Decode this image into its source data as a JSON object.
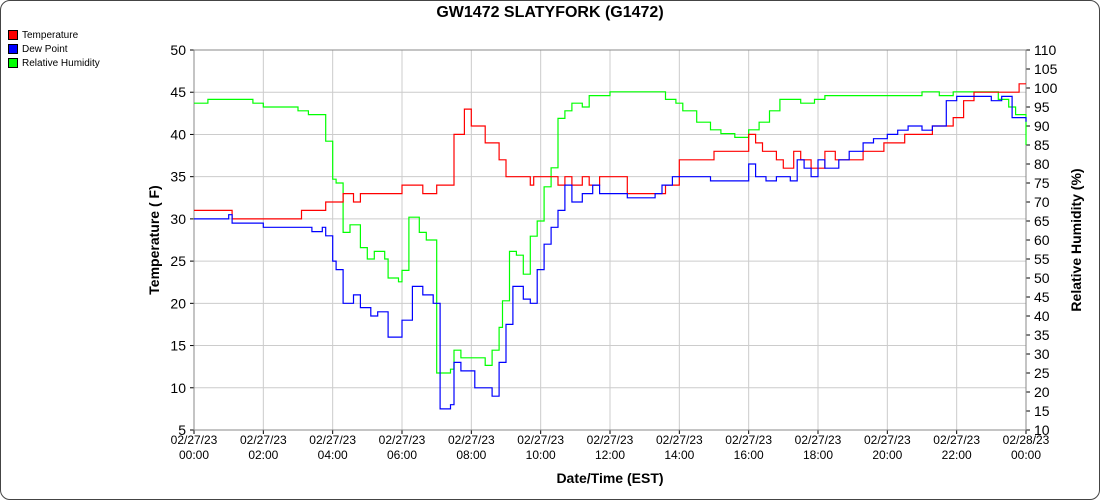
{
  "chart_data": {
    "type": "line",
    "title": "GW1472 SLATYFORK (G1472)",
    "xlabel": "Date/Time (EST)",
    "ylabel": "Temperature ( F)",
    "ylabel_right": "Relative Humidity (%)",
    "x_range": [
      0,
      24
    ],
    "ylim": [
      5,
      50
    ],
    "ylim_right": [
      10,
      110
    ],
    "y_ticks": [
      5,
      10,
      15,
      20,
      25,
      30,
      35,
      40,
      45,
      50
    ],
    "y_right_ticks": [
      10,
      15,
      20,
      25,
      30,
      35,
      40,
      45,
      50,
      55,
      60,
      65,
      70,
      75,
      80,
      85,
      90,
      95,
      100,
      105,
      110
    ],
    "x_ticks": [
      {
        "date": "02/27/23",
        "time": "00:00",
        "hour": 0
      },
      {
        "date": "02/27/23",
        "time": "02:00",
        "hour": 2
      },
      {
        "date": "02/27/23",
        "time": "04:00",
        "hour": 4
      },
      {
        "date": "02/27/23",
        "time": "06:00",
        "hour": 6
      },
      {
        "date": "02/27/23",
        "time": "08:00",
        "hour": 8
      },
      {
        "date": "02/27/23",
        "time": "10:00",
        "hour": 10
      },
      {
        "date": "02/27/23",
        "time": "12:00",
        "hour": 12
      },
      {
        "date": "02/27/23",
        "time": "14:00",
        "hour": 14
      },
      {
        "date": "02/27/23",
        "time": "16:00",
        "hour": 16
      },
      {
        "date": "02/27/23",
        "time": "18:00",
        "hour": 18
      },
      {
        "date": "02/27/23",
        "time": "20:00",
        "hour": 20
      },
      {
        "date": "02/27/23",
        "time": "22:00",
        "hour": 22
      },
      {
        "date": "02/28/23",
        "time": "00:00",
        "hour": 24
      }
    ],
    "grid": true,
    "legend_position": "top-left",
    "series": [
      {
        "name": "Temperature",
        "color": "#ff0000",
        "axis": "left",
        "x": [
          0,
          1,
          1.1,
          3,
          3.1,
          3.7,
          3.8,
          4.0,
          4.3,
          4.6,
          4.8,
          5,
          5.2,
          5.9,
          6.0,
          6.2,
          6.6,
          6.7,
          7.0,
          7.1,
          7.5,
          7.6,
          7.8,
          8,
          8.2,
          8.4,
          8.5,
          8.8,
          9,
          9.1,
          9.7,
          9.8,
          10,
          10.5,
          10.7,
          10.9,
          11.2,
          11.4,
          11.7,
          12.1,
          12.5,
          13.4,
          13.6,
          14.0,
          14.7,
          15,
          15.5,
          15.8,
          16,
          16.2,
          16.4,
          16.8,
          17.0,
          17.2,
          17.3,
          17.5,
          17.8,
          17.9,
          18.2,
          18.5,
          18.8,
          19.3,
          19.9,
          20.5,
          21.3,
          21.5,
          21.9,
          22.2,
          22.5,
          23.0,
          23.2,
          23.8,
          24
        ],
        "values": [
          31,
          31,
          30,
          30,
          31,
          31,
          32,
          32,
          33,
          32,
          33,
          33,
          33,
          33,
          34,
          34,
          33,
          33,
          34,
          34,
          40,
          40,
          43,
          41,
          41,
          39,
          39,
          37,
          35,
          35,
          34,
          35,
          35,
          34,
          35,
          34,
          35,
          34,
          35,
          35,
          33,
          33,
          34,
          37,
          37,
          38,
          38,
          38,
          40,
          39,
          38,
          37,
          36,
          36,
          38,
          37,
          36,
          36,
          38,
          37,
          37,
          38,
          39,
          40,
          41,
          41,
          42,
          44,
          45,
          45,
          45,
          46,
          46
        ]
      },
      {
        "name": "Dew Point",
        "color": "#0000ff",
        "axis": "left",
        "x": [
          0,
          0.5,
          1.0,
          1.1,
          2.0,
          3.0,
          3.4,
          3.7,
          3.8,
          4.0,
          4.1,
          4.3,
          4.6,
          4.8,
          5.1,
          5.3,
          5.6,
          5.7,
          6.0,
          6.3,
          6.6,
          6.9,
          7.0,
          7.1,
          7.2,
          7.4,
          7.5,
          7.7,
          8.1,
          8.3,
          8.6,
          8.8,
          9.0,
          9.2,
          9.5,
          9.7,
          9.9,
          10.1,
          10.3,
          10.5,
          10.7,
          10.9,
          11.2,
          11.5,
          11.7,
          11.9,
          12.2,
          12.5,
          12.8,
          13.0,
          13.3,
          13.5,
          13.8,
          14.0,
          14.3,
          14.6,
          14.9,
          15.3,
          15.8,
          16.0,
          16.2,
          16.5,
          16.8,
          17.0,
          17.2,
          17.4,
          17.6,
          17.8,
          18.0,
          18.2,
          18.6,
          18.9,
          19.3,
          19.6,
          20.0,
          20.3,
          20.6,
          21.0,
          21.3,
          21.7,
          22.0,
          22.4,
          22.8,
          23.0,
          23.3,
          23.6,
          23.8,
          24
        ],
        "values": [
          30,
          30,
          30.5,
          29.5,
          29,
          29,
          28.5,
          29,
          28,
          25,
          24,
          20,
          21,
          19.5,
          18.5,
          19,
          16,
          16,
          18,
          22,
          21,
          20,
          20,
          7.5,
          7.5,
          8,
          13,
          12,
          10,
          10,
          9,
          13,
          17.5,
          22,
          20.5,
          20,
          24,
          27,
          29,
          31,
          34,
          32,
          33,
          34,
          33,
          33,
          33,
          32.5,
          32.5,
          32.5,
          33,
          34,
          35,
          35,
          35,
          35,
          34.5,
          34.5,
          34.5,
          36.5,
          35,
          34.5,
          35,
          35,
          34.5,
          37,
          36,
          35,
          37,
          36,
          37,
          38,
          39,
          39.5,
          40,
          40.5,
          41,
          40.5,
          41,
          44,
          44.5,
          44.5,
          44.5,
          44,
          44.5,
          42,
          42,
          41.5
        ]
      },
      {
        "name": "Relative Humidity",
        "color": "#00ff00",
        "axis": "right",
        "x": [
          0,
          0.3,
          0.4,
          1.6,
          1.7,
          2.0,
          2.9,
          3.0,
          3.3,
          3.7,
          3.8,
          4.0,
          4.1,
          4.3,
          4.5,
          4.8,
          5.0,
          5.2,
          5.5,
          5.6,
          5.9,
          6.0,
          6.2,
          6.5,
          6.7,
          6.9,
          7.0,
          7.1,
          7.4,
          7.5,
          7.7,
          8.0,
          8.3,
          8.4,
          8.6,
          8.8,
          8.9,
          9.1,
          9.3,
          9.5,
          9.7,
          9.9,
          10.1,
          10.3,
          10.5,
          10.7,
          10.9,
          11.2,
          11.4,
          11.7,
          12.0,
          12.5,
          13.0,
          13.6,
          13.9,
          14.1,
          14.5,
          14.9,
          15.2,
          15.6,
          16.0,
          16.3,
          16.6,
          16.9,
          17.2,
          17.5,
          17.9,
          18.2,
          18.5,
          19.0,
          19.5,
          20.0,
          20.5,
          21.0,
          21.5,
          21.9,
          22.2,
          22.5,
          22.9,
          23.2,
          23.5,
          23.7,
          24
        ],
        "values": [
          96,
          96,
          97,
          97,
          96,
          95,
          95,
          94,
          93,
          93,
          86,
          76,
          75,
          62,
          64,
          58,
          55,
          57,
          55,
          50,
          49,
          52,
          66,
          62,
          60,
          60,
          25,
          25,
          26,
          31,
          29,
          29,
          29,
          27,
          31,
          37,
          44,
          57,
          56,
          51,
          61,
          65,
          74,
          79,
          92,
          94,
          96,
          95,
          98,
          98,
          99,
          99,
          99,
          97,
          96,
          94,
          91,
          89,
          88,
          87,
          89,
          91,
          94,
          97,
          97,
          96,
          97,
          98,
          98,
          98,
          98,
          98,
          98,
          99,
          98,
          99,
          99,
          99,
          99,
          97,
          95,
          93,
          85
        ]
      }
    ]
  }
}
